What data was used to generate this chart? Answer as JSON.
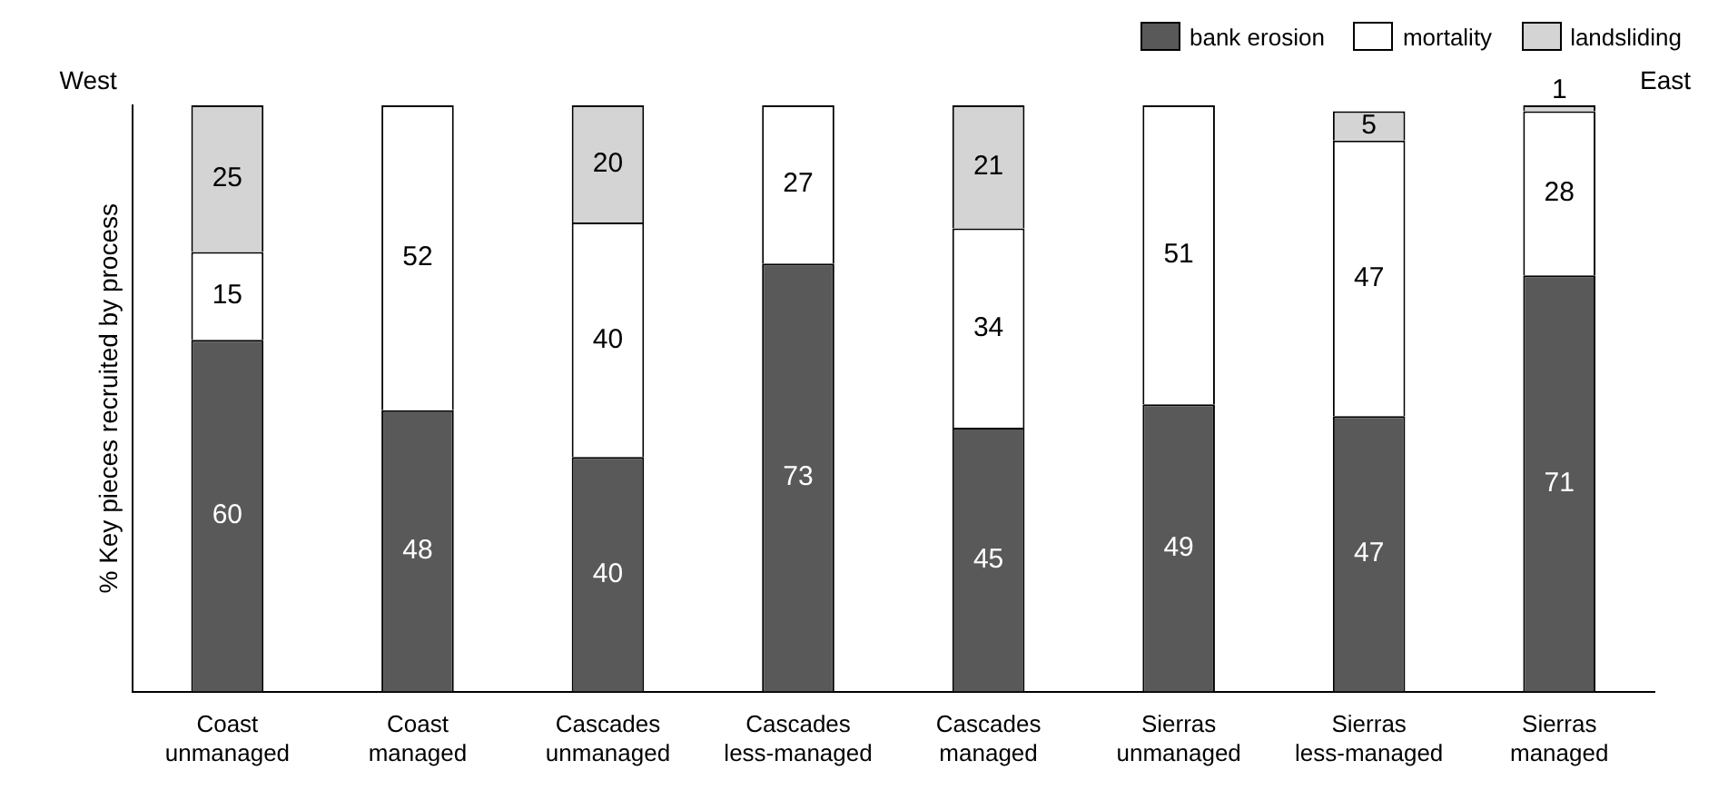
{
  "chart_data": {
    "type": "bar",
    "stacked": true,
    "ylabel": "% Key pieces recruited by process",
    "categories": [
      "Coast unmanaged",
      "Coast managed",
      "Cascades unmanaged",
      "Cascades less-managed",
      "Cascades managed",
      "Sierras unmanaged",
      "Sierras less-managed",
      "Sierras managed"
    ],
    "series": [
      {
        "name": "bank erosion",
        "color": "#595959",
        "values": [
          60,
          48,
          40,
          73,
          45,
          49,
          47,
          71
        ]
      },
      {
        "name": "mortality",
        "color": "#ffffff",
        "values": [
          15,
          52,
          40,
          27,
          34,
          51,
          47,
          28
        ]
      },
      {
        "name": "landsliding",
        "color": "#d4d4d4",
        "values": [
          25,
          null,
          20,
          null,
          21,
          null,
          5,
          1
        ]
      }
    ],
    "data_labels": true,
    "legend": "top right",
    "grid": false,
    "tick_labels": "x",
    "annotations": [
      "West",
      "East"
    ]
  }
}
